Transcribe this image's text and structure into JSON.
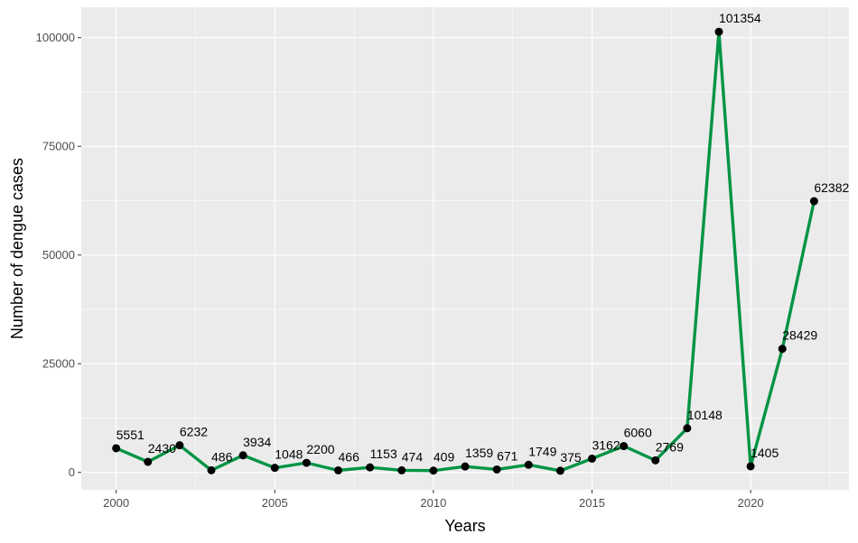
{
  "chart_data": {
    "type": "line",
    "title": "",
    "xlabel": "Years",
    "ylabel": "Number of dengue cases",
    "x": [
      2000,
      2001,
      2002,
      2003,
      2004,
      2005,
      2006,
      2007,
      2008,
      2009,
      2010,
      2011,
      2012,
      2013,
      2014,
      2015,
      2016,
      2017,
      2018,
      2019,
      2020,
      2021,
      2022
    ],
    "series": [
      {
        "values": [
          5551,
          2430,
          6232,
          486,
          3934,
          1048,
          2200,
          466,
          1153,
          474,
          409,
          1359,
          671,
          1749,
          375,
          3162,
          6060,
          2769,
          10148,
          101354,
          1405,
          28429,
          62382
        ]
      }
    ],
    "x_ticks": [
      "2000",
      "2005",
      "2010",
      "2015",
      "2020"
    ],
    "y_ticks": [
      "0",
      "25000",
      "50000",
      "75000",
      "100000"
    ],
    "xlim": [
      1998.9,
      2023.1
    ],
    "ylim": [
      -4000,
      107000
    ],
    "grid": true,
    "legend": "none",
    "colors": {
      "line": "#009444",
      "point": "#000000",
      "panel": "#ebebeb",
      "grid": "#ffffff"
    }
  }
}
